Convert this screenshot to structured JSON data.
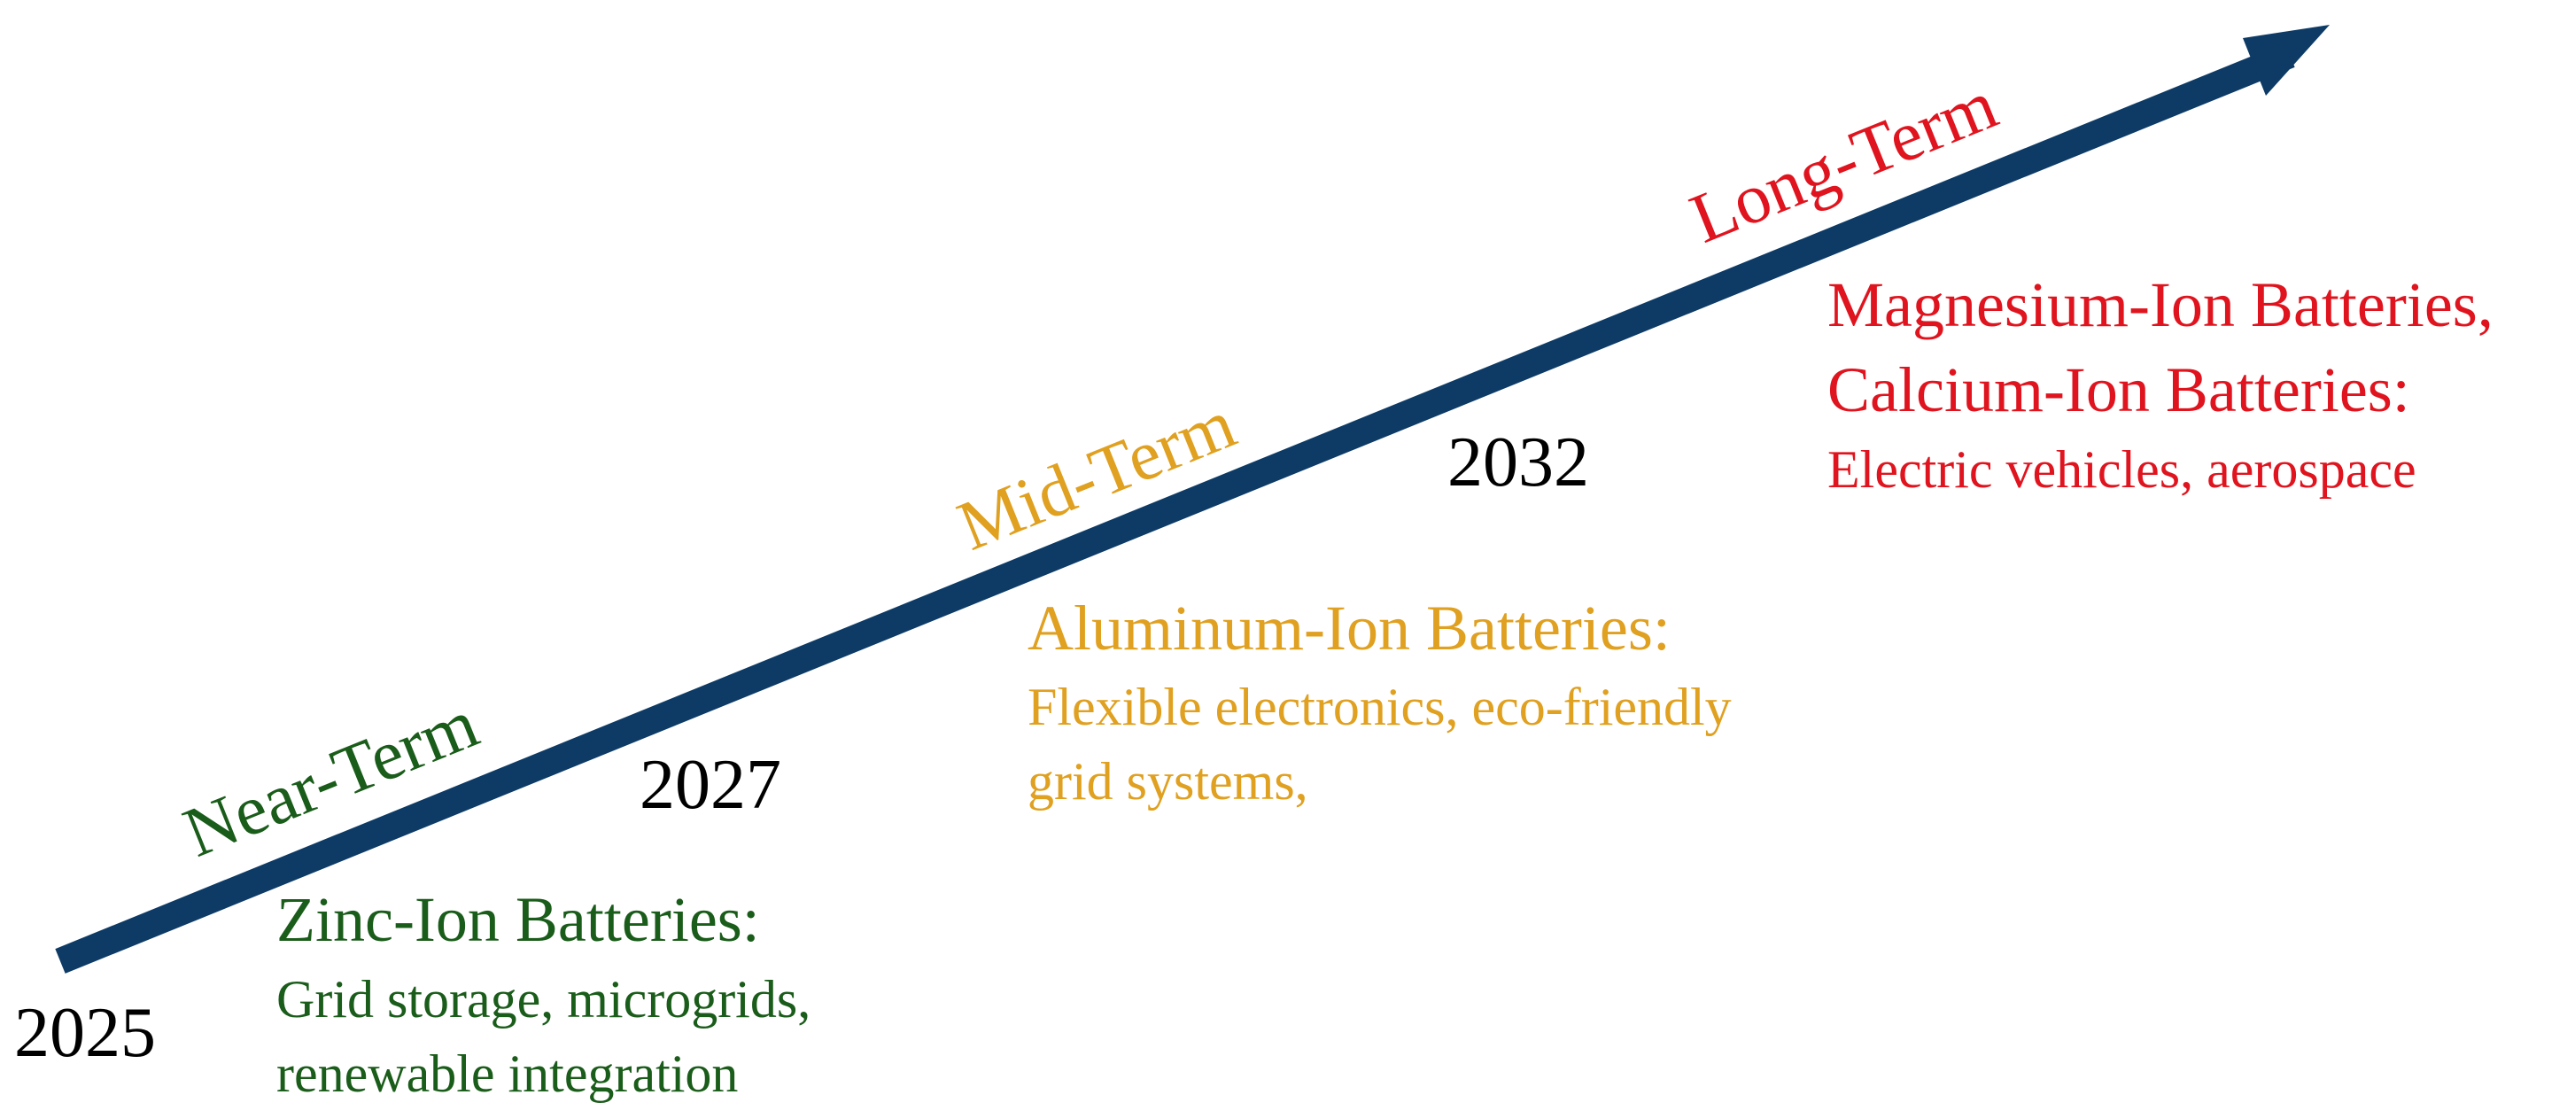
{
  "colors": {
    "arrow": "#0d3b66",
    "near": "#1a5c1a",
    "mid": "#e0a020",
    "long": "#e0141e",
    "year": "#000000"
  },
  "arrow": {
    "icon": "timeline-arrow"
  },
  "years": {
    "y2025": "2025",
    "y2027": "2027",
    "y2032": "2032"
  },
  "phases": {
    "near": "Near-Term",
    "mid": "Mid-Term",
    "long": "Long-Term"
  },
  "near_term": {
    "heading": "Zinc-Ion Batteries:",
    "lines": [
      "Grid storage, microgrids,",
      "renewable integration"
    ]
  },
  "mid_term": {
    "heading": "Aluminum-Ion Batteries:",
    "lines": [
      "Flexible electronics, eco-friendly",
      "grid systems,"
    ]
  },
  "long_term": {
    "headings": [
      "Magnesium-Ion Batteries,",
      "Calcium-Ion Batteries:"
    ],
    "lines": [
      "Electric vehicles, aerospace"
    ]
  }
}
